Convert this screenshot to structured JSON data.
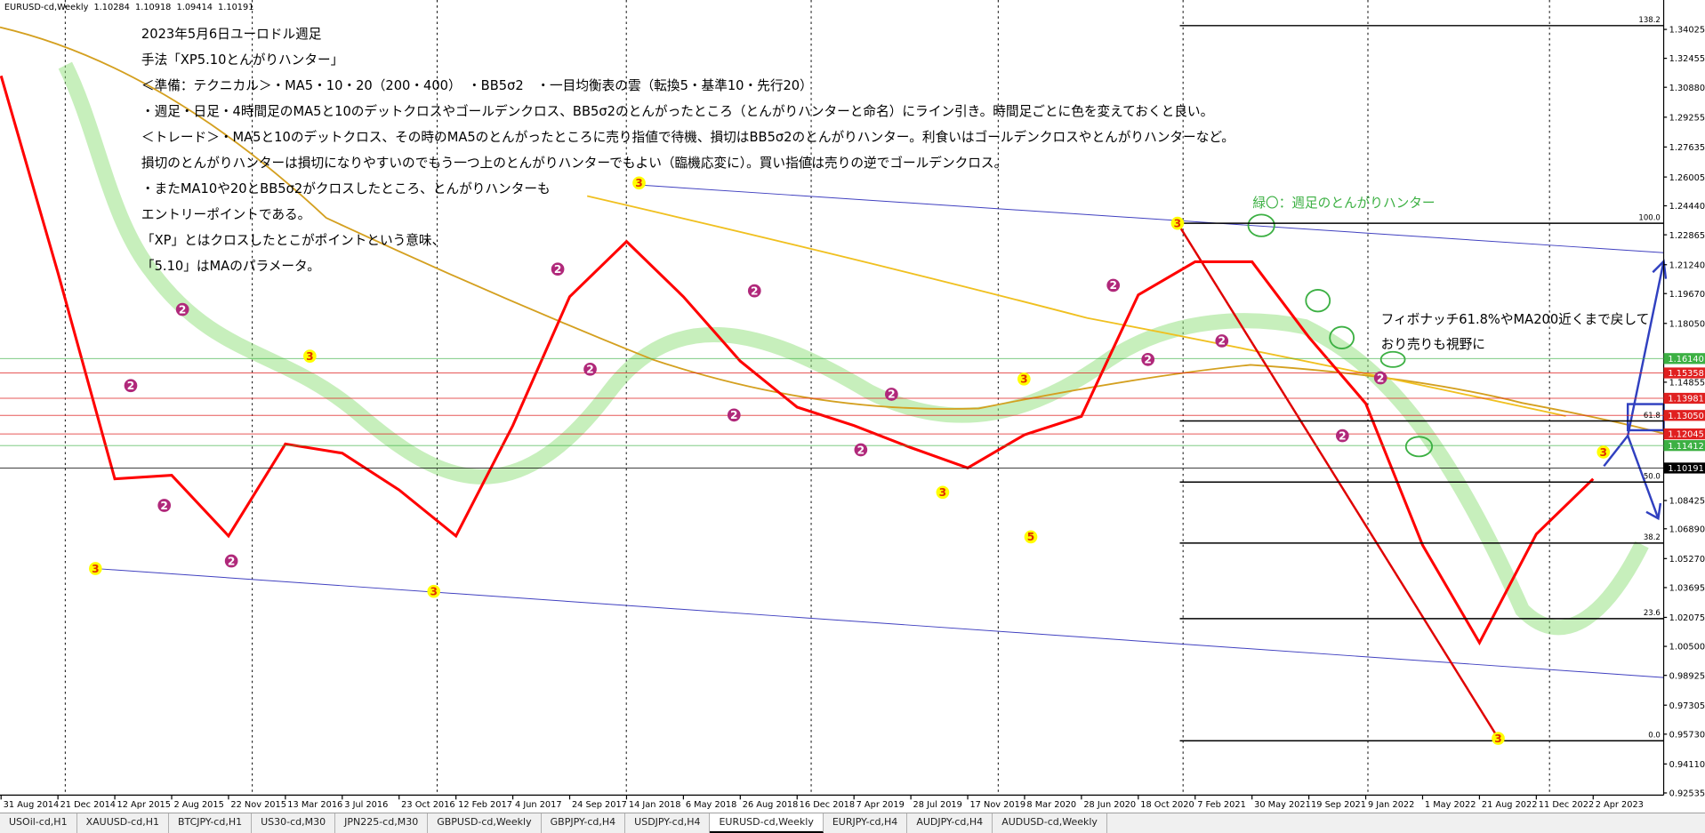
{
  "chart_data": {
    "type": "line",
    "header": {
      "symbol": "EURUSD-cd,Weekly",
      "ohlc": [
        1.10284,
        1.10918,
        1.09414,
        1.10191
      ]
    },
    "annotations": [
      "2023年5月6日ユーロドル週足",
      "手法「XP5.10とんがりハンター」",
      "＜準備：テクニカル＞・MA5・10・20（200・400）　・BB5σ2　・一目均衡表の雲（転換5・基準10・先行20）",
      "・週足・日足・4時間足のMA5と10のデットクロスやゴールデンクロス、BB5σ2のとんがったところ（とんがりハンターと命名）にライン引き。時間足ごとに色を変えておくと良い。",
      "＜トレード＞・MA5と10のデットクロス、その時のMA5のとんがったところに売り指値で待機、損切はBB5σ2のとんがりハンター。利食いはゴールデンクロスやとんがりハンターなど。",
      "損切のとんがりハンターは損切になりやすいのでもう一つ上のとんがりハンターでもよい（臨機応変に）。買い指値は売りの逆でゴールデンクロス。",
      "・またMA10や20とBB5σ2がクロスしたところ、とんがりハンターも",
      "エントリーポイントである。",
      "「XP」とはクロスしたとこがポイントという意味、",
      "「5.10」はMAのパラメータ。"
    ],
    "note_green": "緑〇：週足のとんがりハンター",
    "note_right": [
      "フィボナッチ61.8%やMA200近くまで戻して",
      "おり売りも視野に"
    ],
    "categories": [
      "31 Aug 2014",
      "21 Dec 2014",
      "12 Apr 2015",
      "2 Aug 2015",
      "22 Nov 2015",
      "13 Mar 2016",
      "3 Jul 2016",
      "23 Oct 2016",
      "12 Feb 2017",
      "4 Jun 2017",
      "24 Sep 2017",
      "14 Jan 2018",
      "6 May 2018",
      "26 Aug 2018",
      "16 Dec 2018",
      "7 Apr 2019",
      "28 Jul 2019",
      "17 Nov 2019",
      "8 Mar 2020",
      "28 Jun 2020",
      "18 Oct 2020",
      "7 Feb 2021",
      "30 May 2021",
      "19 Sep 2021",
      "9 Jan 2022",
      "1 May 2022",
      "21 Aug 2022",
      "11 Dec 2022",
      "2 Apr 2023"
    ],
    "values": [
      1.315,
      1.208,
      1.096,
      1.098,
      1.065,
      1.115,
      1.11,
      1.09,
      1.065,
      1.125,
      1.195,
      1.225,
      1.195,
      1.16,
      1.135,
      1.125,
      1.113,
      1.102,
      1.12,
      1.13,
      1.196,
      1.214,
      1.214,
      1.173,
      1.137,
      1.06,
      1.007,
      1.066,
      1.096
    ],
    "color": "#ff0000",
    "xlim": [
      -0.019,
      29.24
    ],
    "ylim": [
      0.92417,
      1.35623
    ],
    "yticks": [
      1.34025,
      1.32455,
      {
        "value": 1.3088,
        "label": "1.30880"
      },
      1.29255,
      1.27635,
      1.26005,
      {
        "value": 1.2444,
        "label": "1.24440"
      },
      1.22865,
      {
        "value": 1.2124,
        "label": "1.21240"
      },
      {
        "value": 1.1967,
        "label": "1.19670"
      },
      {
        "value": 1.1805,
        "label": "1.18050"
      },
      1.14855,
      1.08425,
      {
        "value": 1.0689,
        "label": "1.06890"
      },
      {
        "value": 1.0527,
        "label": "1.05270"
      },
      1.03695,
      1.02075,
      {
        "value": 1.005,
        "label": "1.00500"
      },
      0.98925,
      0.97305,
      {
        "value": 0.9573,
        "label": "0.95730"
      },
      {
        "value": 0.9411,
        "label": "0.94110"
      },
      0.92535
    ],
    "levels": [
      {
        "value": 1.1614,
        "label": "1.16140",
        "color": "#3cb043"
      },
      {
        "value": 1.15358,
        "label": "1.15358",
        "color": "#e02020"
      },
      {
        "value": 1.13981,
        "label": "1.13981",
        "color": "#e02020"
      },
      {
        "value": 1.1305,
        "label": "1.13050",
        "color": "#e02020"
      },
      {
        "value": 1.12045,
        "label": "1.12045",
        "color": "#e02020"
      },
      {
        "value": 1.11412,
        "label": "1.11412",
        "color": "#3cb043"
      },
      {
        "value": 1.10191,
        "label": "1.10191",
        "color": "#000000"
      }
    ],
    "fibonacci": {
      "high": 1.2349,
      "low": 0.9537,
      "levels": [
        {
          "value": 138.2,
          "label": "138.2"
        },
        {
          "value": 100,
          "label": "100.0"
        },
        61.8,
        {
          "value": 50,
          "label": "50.0"
        },
        38.2,
        23.6,
        {
          "value": 0,
          "label": "0.0"
        }
      ]
    },
    "markers": [
      {
        "color": "#ffff00",
        "label_color": "#e03000",
        "points": [
          {
            "label": "3",
            "x": 1.66,
            "price": 1.0473
          },
          {
            "label": "3",
            "x": 5.43,
            "price": 1.1627
          },
          {
            "label": "3",
            "x": 7.61,
            "price": 1.0349
          },
          {
            "label": "3",
            "x": 11.22,
            "price": 1.2568
          },
          {
            "label": "3",
            "x": 16.56,
            "price": 1.0887
          },
          {
            "label": "3",
            "x": 17.99,
            "price": 1.1503
          },
          {
            "label": "5",
            "x": 18.11,
            "price": 1.0645
          },
          {
            "label": "3",
            "x": 20.69,
            "price": 1.2349
          },
          {
            "label": "3",
            "x": 26.33,
            "price": 0.955
          },
          {
            "label": "3",
            "x": 28.18,
            "price": 1.1106
          }
        ]
      },
      {
        "color": "#b0287a",
        "label_color": "#ffffff",
        "points": [
          {
            "label": "2",
            "x": 3.19,
            "price": 1.1881
          },
          {
            "label": "2",
            "x": 2.28,
            "price": 1.1467
          },
          {
            "label": "2",
            "x": 2.87,
            "price": 1.0816
          },
          {
            "label": "2",
            "x": 4.05,
            "price": 1.0514
          },
          {
            "label": "2",
            "x": 9.79,
            "price": 1.21
          },
          {
            "label": "2",
            "x": 10.36,
            "price": 1.1556
          },
          {
            "label": "2",
            "x": 13.25,
            "price": 1.1982
          },
          {
            "label": "2",
            "x": 12.89,
            "price": 1.1307
          },
          {
            "label": "2",
            "x": 15.66,
            "price": 1.142
          },
          {
            "label": "2",
            "x": 15.12,
            "price": 1.1118
          },
          {
            "label": "2",
            "x": 19.56,
            "price": 1.2012
          },
          {
            "label": "2",
            "x": 20.17,
            "price": 1.1609
          },
          {
            "label": "2",
            "x": 21.47,
            "price": 1.171
          },
          {
            "label": "2",
            "x": 24.26,
            "price": 1.1509
          },
          {
            "label": "2",
            "x": 23.59,
            "price": 1.1195
          }
        ]
      }
    ],
    "tabs": [
      "USOil-cd,H1",
      "XAUUSD-cd,H1",
      "BTCJPY-cd,H1",
      "US30-cd,M30",
      "JPN225-cd,M30",
      "GBPUSD-cd,Weekly",
      "GBPJPY-cd,H4",
      "USDJPY-cd,H4",
      "EURUSD-cd,Weekly",
      "EURJPY-cd,H4",
      "AUDJPY-cd,H4",
      "AUDUSD-cd,Weekly"
    ],
    "active_tab": 8
  }
}
